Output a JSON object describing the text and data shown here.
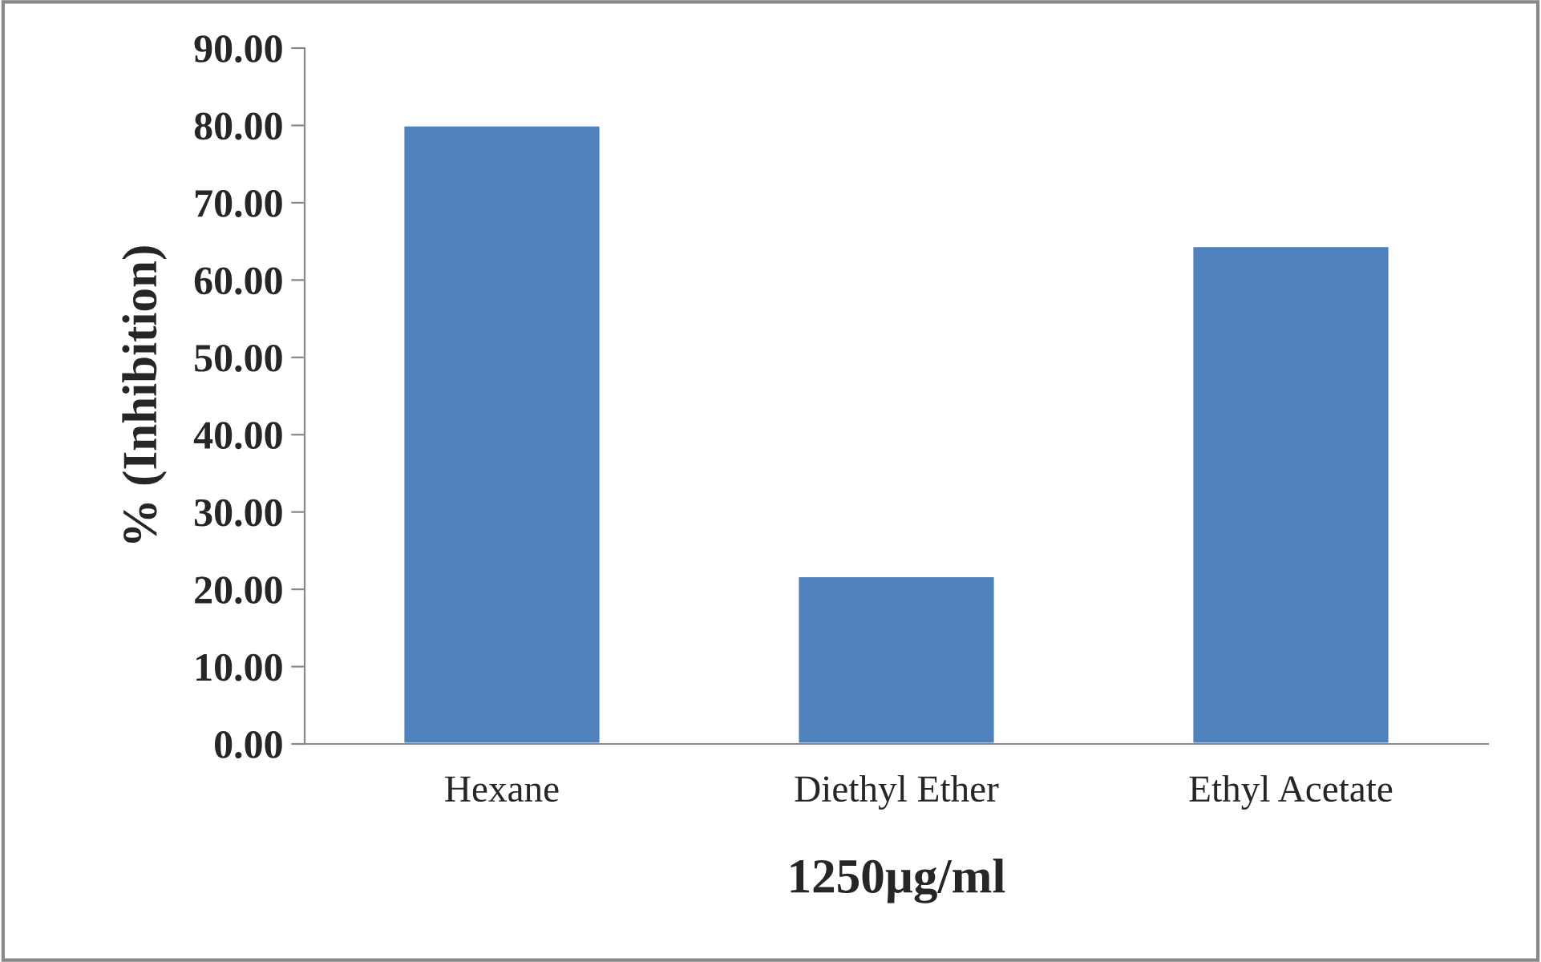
{
  "chart_data": {
    "type": "bar",
    "xlabel": "1250µg/ml",
    "ylabel": "% (Inhibition)",
    "categories": [
      "Hexane",
      "Diethyl Ether",
      "Ethyl Acetate"
    ],
    "values": [
      80.0,
      21.7,
      64.4
    ],
    "color": "#4f81bd",
    "ylim": [
      0,
      90
    ],
    "yticks": [
      {
        "value": 0,
        "label": "0.00"
      },
      {
        "value": 10,
        "label": "10.00"
      },
      {
        "value": 20,
        "label": "20.00"
      },
      {
        "value": 30,
        "label": "30.00"
      },
      {
        "value": 40,
        "label": "40.00"
      },
      {
        "value": 50,
        "label": "50.00"
      },
      {
        "value": 60,
        "label": "60.00"
      },
      {
        "value": 70,
        "label": "70.00"
      },
      {
        "value": 80,
        "label": "80.00"
      },
      {
        "value": 90,
        "label": "90.00"
      }
    ],
    "grid": false,
    "legend": false
  }
}
